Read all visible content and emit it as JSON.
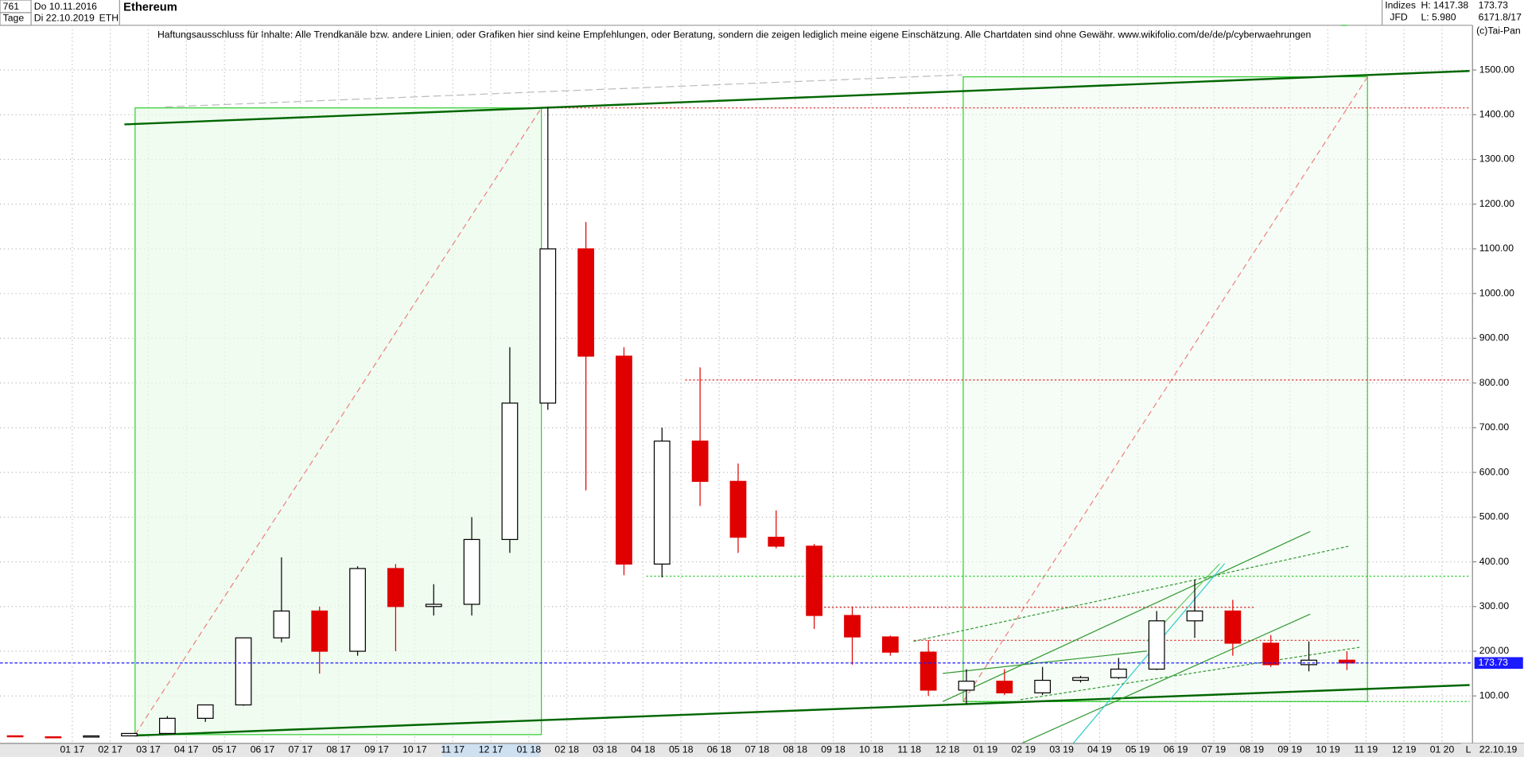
{
  "header": {
    "count": "761",
    "start": "Do 10.11.2016",
    "period": "Tage",
    "end": "Di 22.10.2019",
    "symbol": "ETH",
    "group": "Indizes",
    "broker": "JFD",
    "high": "H: 1417.38",
    "low": "L: 5.980",
    "last": "173.73",
    "extra": "6171.8/17",
    "copyright": "(c)Tai-Pan",
    "disclaimer": "Haftungsausschluss für Inhalte: Alle Trendkanäle bzw. andere Linien, oder Grafiken hier sind keine Empfehlungen, oder Beratung, sondern die zeigen lediglich meine eigene Einschätzung. Alle Chartdaten sind ohne Gewähr.  www.wikifolio.com/de/de/p/cyberwaehrungen",
    "footer_flag": "L",
    "footer_date": "22.10.19"
  },
  "chart_data": {
    "type": "candlestick",
    "title": "Ethereum",
    "categories": [
      null,
      null,
      "01 17",
      "02 17",
      "03 17",
      "04 17",
      "05 17",
      "06 17",
      "07 17",
      "08 17",
      "09 17",
      "10 17",
      "11 17",
      "12 17",
      "01 18",
      "02 18",
      "03 18",
      "04 18",
      "05 18",
      "06 18",
      "07 18",
      "08 18",
      "09 18",
      "10 18",
      "11 18",
      "12 18",
      "01 19",
      "02 19",
      "03 19",
      "04 19",
      "05 19",
      "06 19",
      "07 19",
      "08 19",
      "09 19",
      "10 19",
      "11 19",
      "12 19",
      "01 20"
    ],
    "open": [
      10.9,
      8.6,
      8.0,
      10.7,
      16.1,
      50,
      80,
      230,
      290,
      200,
      385,
      300,
      305,
      450,
      755,
      1100,
      860,
      395,
      670,
      580,
      455,
      435,
      280,
      232,
      198,
      113,
      133,
      107,
      135,
      141,
      160,
      268,
      290,
      218,
      170,
      180,
      null,
      null,
      null
    ],
    "high": [
      11,
      8.9,
      11.5,
      16.5,
      55,
      80,
      230,
      410,
      300,
      390,
      395,
      350,
      500,
      880,
      1417.38,
      1160,
      880,
      700,
      835,
      620,
      515,
      440,
      300,
      235,
      225,
      160,
      160,
      165,
      145,
      185,
      290,
      360,
      315,
      236,
      222,
      200,
      null,
      null,
      null
    ],
    "low": [
      8.4,
      5.98,
      8.0,
      10.4,
      15.5,
      42,
      78,
      220,
      150,
      190,
      200,
      280,
      280,
      420,
      740,
      560,
      370,
      365,
      525,
      420,
      430,
      250,
      170,
      190,
      100,
      82,
      102,
      102,
      130,
      138,
      158,
      230,
      190,
      165,
      155,
      158,
      null,
      null,
      null
    ],
    "close": [
      8.6,
      8.0,
      10.7,
      16.1,
      50,
      80,
      230,
      290,
      200,
      385,
      300,
      305,
      450,
      755,
      1100,
      860,
      395,
      670,
      580,
      455,
      435,
      280,
      232,
      198,
      113,
      133,
      107,
      135,
      141,
      160,
      268,
      290,
      218,
      170,
      180,
      173.73,
      null,
      null,
      null
    ],
    "up_color": "#000000",
    "down_color": "#e00000",
    "last_color": "#1a1aff",
    "ylim": [
      -6,
      1600
    ],
    "yticks": [
      {
        "value": 100,
        "label": "100.00"
      },
      {
        "value": 200,
        "label": "200.00"
      },
      {
        "value": 300,
        "label": "300.00"
      },
      {
        "value": 400,
        "label": "400.00"
      },
      {
        "value": 500,
        "label": "500.00"
      },
      {
        "value": 600,
        "label": "600.00"
      },
      {
        "value": 700,
        "label": "700.00"
      },
      {
        "value": 800,
        "label": "800.00"
      },
      {
        "value": 900,
        "label": "900.00"
      },
      {
        "value": 1000,
        "label": "1000.00"
      },
      {
        "value": 1100,
        "label": "1100.00"
      },
      {
        "value": 1200,
        "label": "1200.00"
      },
      {
        "value": 1300,
        "label": "1300.00"
      },
      {
        "value": 1400,
        "label": "1400.00"
      },
      {
        "value": 1500,
        "label": "1500.00"
      }
    ],
    "grid": true
  }
}
